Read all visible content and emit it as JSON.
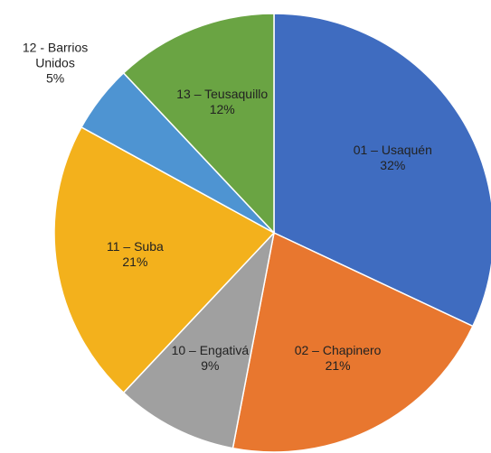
{
  "chart_data": {
    "type": "pie",
    "categories": [
      "01 – Usaquén",
      "02 – Chapinero",
      "10 – Engativá",
      "11 – Suba",
      "12 - Barrios Unidos",
      "13 – Teusaquillo"
    ],
    "values": [
      32,
      21,
      9,
      21,
      5,
      12
    ],
    "value_labels": [
      "32%",
      "21%",
      "9%",
      "21%",
      "5%",
      "12%"
    ],
    "colors": [
      "#3f6cc0",
      "#e8772f",
      "#a0a0a0",
      "#f3b11c",
      "#4e94d2",
      "#6aa443"
    ]
  }
}
